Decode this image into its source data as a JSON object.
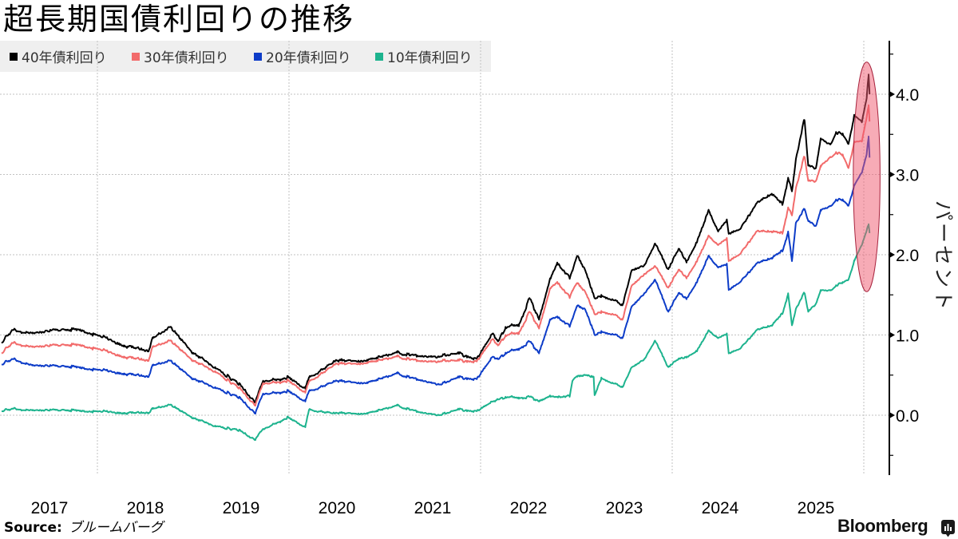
{
  "header": {
    "title": "超長期国債利回りの推移"
  },
  "legend": {
    "items": [
      {
        "label": "40年債利回り",
        "color": "#000000"
      },
      {
        "label": "30年債利回り",
        "color": "#f26b6b"
      },
      {
        "label": "20年債利回り",
        "color": "#0d3cc8"
      },
      {
        "label": "10年債利回り",
        "color": "#1db38e"
      }
    ]
  },
  "axis": {
    "y_label": "パーセント"
  },
  "footer": {
    "source_label": "Source:",
    "source_value": "ブルームバーグ",
    "brand": "Bloomberg",
    "brand_icon": "bloomberg-chart-icon"
  },
  "chart_data": {
    "type": "line",
    "title": "超長期国債利回りの推移",
    "xlabel": "",
    "ylabel": "パーセント",
    "x_tick_labels": [
      "2017",
      "2018",
      "2019",
      "2020",
      "2021",
      "2022",
      "2023",
      "2024",
      "2025"
    ],
    "x_tick_positions": [
      2017.5,
      2018.5,
      2019.5,
      2020.5,
      2021.5,
      2022.5,
      2023.5,
      2024.5,
      2025.5
    ],
    "x_gridlines": [
      2018,
      2020,
      2022,
      2024,
      2026
    ],
    "y_ticks": [
      0,
      1,
      2,
      3,
      4
    ],
    "y_tick_labels": [
      "0.0",
      "1.0",
      "2.0",
      "3.0",
      "4.0"
    ],
    "y_minor_ticks": [
      -0.5,
      0.5,
      1.5,
      2.5,
      3.5,
      4.5
    ],
    "ylim": [
      -0.75,
      4.67
    ],
    "xlim": [
      2016.98,
      2026.27
    ],
    "grid": true,
    "legend_position": "top-left",
    "y_axis_position": "right",
    "x": [
      2017.0,
      2017.11,
      2017.32,
      2017.57,
      2017.82,
      2018.0,
      2018.28,
      2018.53,
      2018.58,
      2018.76,
      2018.98,
      2019.23,
      2019.48,
      2019.65,
      2019.73,
      2019.98,
      2020.17,
      2020.21,
      2020.48,
      2020.82,
      2021.13,
      2021.38,
      2021.59,
      2021.76,
      2021.96,
      2022.13,
      2022.18,
      2022.26,
      2022.4,
      2022.51,
      2022.61,
      2022.73,
      2022.8,
      2022.93,
      2022.96,
      2023.01,
      2023.09,
      2023.18,
      2023.19,
      2023.26,
      2023.38,
      2023.48,
      2023.58,
      2023.71,
      2023.82,
      2023.96,
      2024.07,
      2024.15,
      2024.26,
      2024.38,
      2024.48,
      2024.57,
      2024.59,
      2024.71,
      2024.88,
      2025.04,
      2025.15,
      2025.21,
      2025.25,
      2025.29,
      2025.38,
      2025.42,
      2025.5,
      2025.55,
      2025.65,
      2025.71,
      2025.78,
      2025.84,
      2025.9,
      2025.98,
      2026.03,
      2026.05,
      2026.06
    ],
    "series": [
      {
        "name": "40年債利回り",
        "color": "#000000",
        "values": [
          0.9,
          1.06,
          1.02,
          1.07,
          1.07,
          1.0,
          0.87,
          0.8,
          0.96,
          1.1,
          0.8,
          0.6,
          0.4,
          0.17,
          0.43,
          0.47,
          0.33,
          0.47,
          0.67,
          0.68,
          0.78,
          0.73,
          0.73,
          0.77,
          0.7,
          1.02,
          0.92,
          1.1,
          1.13,
          1.46,
          1.19,
          1.7,
          1.9,
          1.7,
          1.8,
          1.98,
          1.81,
          1.5,
          1.46,
          1.5,
          1.44,
          1.37,
          1.81,
          1.87,
          2.14,
          1.82,
          2.07,
          1.92,
          2.16,
          2.56,
          2.29,
          2.44,
          2.26,
          2.32,
          2.64,
          2.76,
          2.62,
          2.96,
          2.79,
          3.18,
          3.68,
          3.11,
          3.08,
          3.45,
          3.38,
          3.53,
          3.51,
          3.38,
          3.73,
          3.65,
          3.95,
          4.23,
          4.0
        ]
      },
      {
        "name": "30年債利回り",
        "color": "#f26b6b",
        "values": [
          0.77,
          0.9,
          0.85,
          0.88,
          0.88,
          0.83,
          0.73,
          0.68,
          0.85,
          0.93,
          0.7,
          0.55,
          0.35,
          0.13,
          0.4,
          0.43,
          0.28,
          0.42,
          0.63,
          0.65,
          0.73,
          0.67,
          0.67,
          0.68,
          0.67,
          0.95,
          0.87,
          1.0,
          1.03,
          1.29,
          1.08,
          1.58,
          1.66,
          1.46,
          1.55,
          1.64,
          1.54,
          1.3,
          1.26,
          1.3,
          1.26,
          1.19,
          1.62,
          1.76,
          1.86,
          1.59,
          1.81,
          1.72,
          1.92,
          2.24,
          2.12,
          2.21,
          1.92,
          2.01,
          2.29,
          2.29,
          2.26,
          2.59,
          2.49,
          2.82,
          3.22,
          2.92,
          2.92,
          3.11,
          3.22,
          3.28,
          3.25,
          3.08,
          3.4,
          3.41,
          3.71,
          3.85,
          3.66
        ]
      },
      {
        "name": "20年債利回り",
        "color": "#0d3cc8",
        "values": [
          0.63,
          0.7,
          0.62,
          0.62,
          0.6,
          0.57,
          0.52,
          0.48,
          0.62,
          0.68,
          0.47,
          0.35,
          0.23,
          0.03,
          0.27,
          0.3,
          0.17,
          0.3,
          0.42,
          0.4,
          0.52,
          0.43,
          0.38,
          0.47,
          0.45,
          0.73,
          0.7,
          0.78,
          0.83,
          0.92,
          0.77,
          1.19,
          1.23,
          1.1,
          1.2,
          1.36,
          1.32,
          1.05,
          1.0,
          1.05,
          1.01,
          0.96,
          1.36,
          1.52,
          1.69,
          1.29,
          1.52,
          1.46,
          1.66,
          1.99,
          1.84,
          1.89,
          1.56,
          1.66,
          1.89,
          1.96,
          2.04,
          2.29,
          1.92,
          2.39,
          2.56,
          2.42,
          2.36,
          2.56,
          2.61,
          2.69,
          2.69,
          2.61,
          2.86,
          3.02,
          3.25,
          3.46,
          3.21
        ]
      },
      {
        "name": "10年債利回り",
        "color": "#1db38e",
        "values": [
          0.05,
          0.08,
          0.06,
          0.07,
          0.06,
          0.05,
          0.03,
          0.03,
          0.08,
          0.13,
          -0.02,
          -0.13,
          -0.18,
          -0.3,
          -0.17,
          -0.03,
          -0.15,
          0.07,
          0.02,
          0.02,
          0.12,
          0.03,
          0.0,
          0.07,
          0.05,
          0.17,
          0.2,
          0.23,
          0.22,
          0.23,
          0.17,
          0.23,
          0.23,
          0.23,
          0.43,
          0.48,
          0.5,
          0.48,
          0.25,
          0.47,
          0.4,
          0.35,
          0.6,
          0.7,
          0.93,
          0.6,
          0.7,
          0.73,
          0.8,
          1.06,
          0.96,
          1.02,
          0.77,
          0.83,
          1.06,
          1.12,
          1.26,
          1.52,
          1.12,
          1.32,
          1.52,
          1.29,
          1.39,
          1.56,
          1.56,
          1.62,
          1.66,
          1.69,
          1.92,
          2.12,
          2.3,
          2.37,
          2.27
        ]
      }
    ],
    "annotations": [
      {
        "type": "ellipse",
        "label": "latest-surge-highlight",
        "center_x": 2026.03,
        "center_y": 2.97,
        "half_width_years": 0.14,
        "half_height": 1.43,
        "fill": "#f0586e",
        "stroke": "#a8243e"
      }
    ]
  }
}
